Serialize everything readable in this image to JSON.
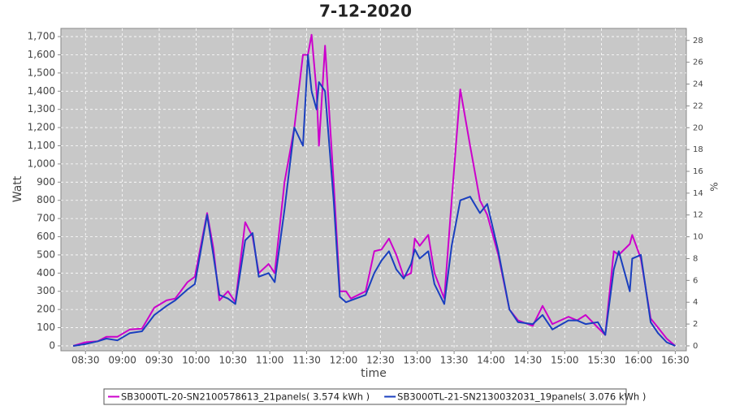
{
  "chart_data": {
    "type": "line",
    "title": "7-12-2020",
    "x_label": "time",
    "y_label": "Watt",
    "y2_label": "%",
    "x": [
      "08:20",
      "08:30",
      "08:40",
      "08:47",
      "08:56",
      "09:06",
      "09:16",
      "09:26",
      "09:36",
      "09:43",
      "09:53",
      "09:59",
      "10:09",
      "10:14",
      "10:19",
      "10:26",
      "10:32",
      "10:40",
      "10:46",
      "10:51",
      "10:59",
      "11:04",
      "11:12",
      "11:20",
      "11:27",
      "11:31",
      "11:34",
      "11:38",
      "11:40",
      "11:45",
      "11:52",
      "11:57",
      "12:02",
      "12:06",
      "12:18",
      "12:25",
      "12:31",
      "12:37",
      "12:43",
      "12:49",
      "12:55",
      "12:58",
      "13:02",
      "13:09",
      "13:14",
      "13:22",
      "13:28",
      "13:35",
      "13:43",
      "13:51",
      "13:57",
      "14:06",
      "14:15",
      "14:22",
      "14:34",
      "14:42",
      "14:50",
      "15:03",
      "15:10",
      "15:17",
      "15:27",
      "15:33",
      "15:40",
      "15:44",
      "15:53",
      "15:55",
      "16:02",
      "16:10",
      "16:16",
      "16:23",
      "16:30"
    ],
    "series": [
      {
        "name": "SB3000TL-20-SN2100578613_21panels( 3.574 kWh )",
        "color": "#cc00cc",
        "values": [
          0,
          20,
          25,
          50,
          50,
          90,
          95,
          210,
          250,
          260,
          350,
          380,
          730,
          540,
          250,
          300,
          240,
          680,
          600,
          400,
          450,
          400,
          900,
          1200,
          1600,
          1600,
          1710,
          1400,
          1100,
          1650,
          900,
          300,
          300,
          260,
          300,
          520,
          530,
          590,
          500,
          380,
          400,
          590,
          550,
          610,
          400,
          260,
          800,
          1410,
          1100,
          800,
          720,
          500,
          200,
          140,
          110,
          220,
          120,
          160,
          140,
          170,
          100,
          60,
          520,
          500,
          560,
          610,
          480,
          150,
          100,
          40,
          0
        ]
      },
      {
        "name": "SB3000TL-21-SN2130032031_19panels( 3.076 kWh )",
        "color": "#1a3fbf",
        "values": [
          0,
          10,
          25,
          40,
          30,
          70,
          80,
          170,
          220,
          250,
          310,
          340,
          720,
          500,
          280,
          260,
          230,
          580,
          620,
          380,
          400,
          350,
          750,
          1200,
          1100,
          1600,
          1400,
          1300,
          1450,
          1400,
          800,
          270,
          240,
          250,
          280,
          400,
          470,
          520,
          420,
          370,
          450,
          530,
          480,
          520,
          340,
          230,
          550,
          800,
          820,
          730,
          780,
          520,
          200,
          130,
          120,
          170,
          90,
          140,
          140,
          120,
          130,
          60,
          420,
          520,
          300,
          480,
          500,
          130,
          70,
          20,
          0
        ]
      }
    ],
    "xlim": [
      "08:10",
      "16:39"
    ],
    "xticks": [
      "08:30",
      "09:00",
      "09:30",
      "10:00",
      "10:30",
      "11:00",
      "11:30",
      "12:00",
      "12:30",
      "13:00",
      "13:30",
      "14:00",
      "14:30",
      "15:00",
      "15:30",
      "16:00",
      "16:30"
    ],
    "ylim": [
      -27,
      1745
    ],
    "yticks": [
      0,
      100,
      200,
      300,
      400,
      500,
      600,
      700,
      800,
      900,
      {
        "value": 1000,
        "label": "1,000"
      },
      {
        "value": 1100,
        "label": "1,100"
      },
      {
        "value": 1200,
        "label": "1,200"
      },
      {
        "value": 1300,
        "label": "1,300"
      },
      {
        "value": 1400,
        "label": "1,400"
      },
      {
        "value": 1500,
        "label": "1,500"
      },
      {
        "value": 1600,
        "label": "1,600"
      },
      {
        "value": 1700,
        "label": "1,700"
      }
    ],
    "y2lim": [
      -0.45,
      29.1
    ],
    "y2ticks": [
      0,
      2,
      4,
      6,
      8,
      10,
      12,
      14,
      16,
      18,
      20,
      22,
      24,
      26,
      28
    ],
    "grid": true
  }
}
